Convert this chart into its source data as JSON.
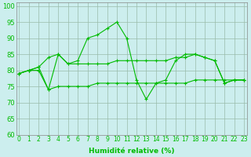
{
  "x": [
    0,
    1,
    2,
    3,
    4,
    5,
    6,
    7,
    8,
    9,
    10,
    11,
    12,
    13,
    14,
    15,
    16,
    17,
    18,
    19,
    20,
    21,
    22,
    23
  ],
  "line1": [
    79,
    80,
    81,
    74,
    85,
    82,
    83,
    90,
    91,
    93,
    95,
    90,
    77,
    71,
    76,
    77,
    83,
    85,
    85,
    84,
    83,
    76,
    77,
    77
  ],
  "line2": [
    79,
    80,
    81,
    84,
    85,
    82,
    82,
    82,
    82,
    82,
    83,
    83,
    83,
    83,
    83,
    83,
    84,
    84,
    85,
    84,
    83,
    76,
    77,
    77
  ],
  "line3": [
    79,
    80,
    80,
    74,
    75,
    75,
    75,
    75,
    76,
    76,
    76,
    76,
    76,
    76,
    76,
    76,
    76,
    76,
    77,
    77,
    77,
    77,
    77,
    77
  ],
  "color": "#00bb00",
  "bg_color": "#cceeee",
  "grid_color": "#99bbaa",
  "xlabel": "Humidité relative (%)",
  "ylim": [
    60,
    101
  ],
  "xlim": [
    -0.3,
    23.3
  ],
  "yticks": [
    60,
    65,
    70,
    75,
    80,
    85,
    90,
    95,
    100
  ],
  "xticks": [
    0,
    1,
    2,
    3,
    4,
    5,
    6,
    7,
    8,
    9,
    10,
    11,
    12,
    13,
    14,
    15,
    16,
    17,
    18,
    19,
    20,
    21,
    22,
    23
  ],
  "xlabel_fontsize": 6.5,
  "tick_fontsize": 5.5
}
